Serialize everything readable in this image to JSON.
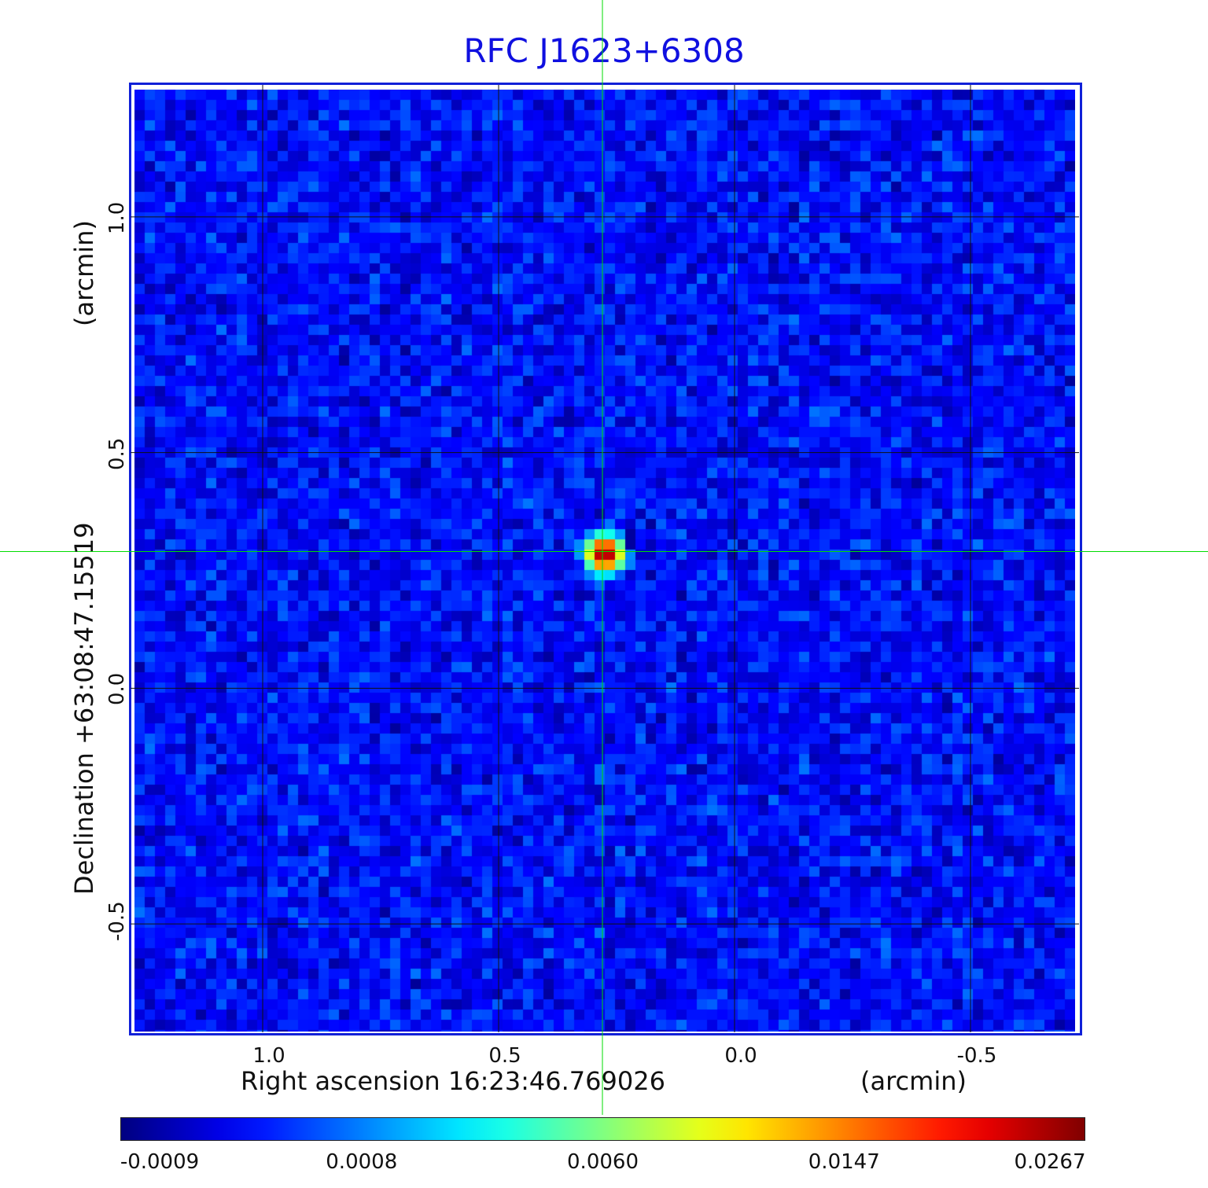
{
  "chart_data": {
    "type": "heatmap",
    "title": "RFC J1623+6308",
    "xlabel": "Right ascension  16:23:46.769026",
    "x_unit": "(arcmin)",
    "ylabel": "Declination  +63:08:47.15519",
    "y_unit": "(arcmin)",
    "x_ticks": [
      "1.0",
      "0.5",
      "0.0",
      "-0.5"
    ],
    "y_ticks": [
      "1.0",
      "0.5",
      "0.0",
      "-0.5"
    ],
    "xlim": [
      1.28,
      -0.73
    ],
    "ylim": [
      -0.73,
      1.28
    ],
    "x_axis_reversed": true,
    "grid": true,
    "colormap": "jet",
    "colorbar_ticks": [
      "-0.0009",
      "0.0008",
      "0.0060",
      "0.0147",
      "0.0267"
    ],
    "value_range": [
      -0.0009,
      0.0267
    ],
    "background_level": 0.0,
    "peak": {
      "x": 0.28,
      "y": 0.29,
      "value": 0.0267
    },
    "crosshair": {
      "x": 0.28,
      "y": 0.29,
      "color": "#00dd00"
    },
    "frame_color": "#1020d8",
    "title_color": "#1010e0"
  }
}
